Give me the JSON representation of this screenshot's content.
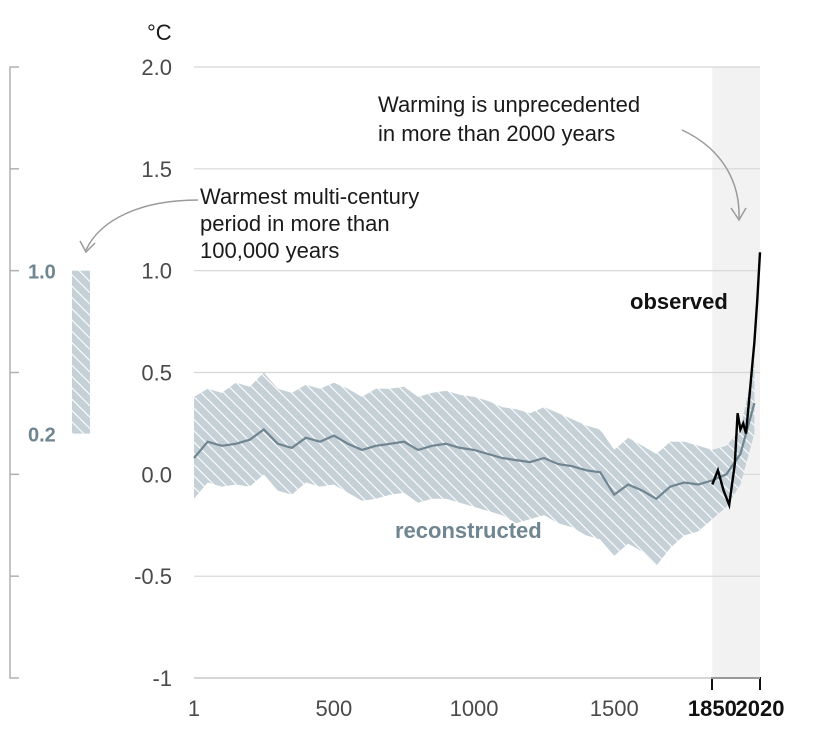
{
  "chart_data": {
    "type": "line",
    "unit_label": "°C",
    "ylim": [
      -1,
      2
    ],
    "y_ticks": [
      "2.0",
      "1.5",
      "1.0",
      "0.5",
      "0.0",
      "-0.5",
      "-1"
    ],
    "y_tick_values": [
      2.0,
      1.5,
      1.0,
      0.5,
      0.0,
      -0.5,
      -1.0
    ],
    "x_range": [
      1,
      2020
    ],
    "x_ticks": [
      {
        "label": "1",
        "value": 1,
        "bold": false
      },
      {
        "label": "500",
        "value": 500,
        "bold": false
      },
      {
        "label": "1000",
        "value": 1000,
        "bold": false
      },
      {
        "label": "1500",
        "value": 1500,
        "bold": false
      },
      {
        "label": "1850",
        "value": 1850,
        "bold": true
      },
      {
        "label": "2020",
        "value": 2020,
        "bold": true
      }
    ],
    "grid": true,
    "shaded_period": [
      1850,
      2020
    ],
    "series": [
      {
        "name": "reconstructed",
        "color": "#6f8591",
        "band_color": "#c5d0d7",
        "x": [
          1,
          50,
          100,
          150,
          200,
          250,
          300,
          350,
          400,
          450,
          500,
          550,
          600,
          650,
          700,
          750,
          800,
          850,
          900,
          950,
          1000,
          1050,
          1100,
          1150,
          1200,
          1250,
          1300,
          1350,
          1400,
          1450,
          1500,
          1550,
          1600,
          1650,
          1700,
          1750,
          1800,
          1850,
          1900,
          1950,
          2000
        ],
        "y": [
          0.08,
          0.16,
          0.14,
          0.15,
          0.17,
          0.22,
          0.15,
          0.13,
          0.18,
          0.16,
          0.19,
          0.15,
          0.12,
          0.14,
          0.15,
          0.16,
          0.12,
          0.14,
          0.15,
          0.13,
          0.12,
          0.1,
          0.08,
          0.07,
          0.06,
          0.08,
          0.05,
          0.04,
          0.02,
          0.01,
          -0.1,
          -0.05,
          -0.08,
          -0.12,
          -0.06,
          -0.04,
          -0.05,
          -0.03,
          0.0,
          0.1,
          0.35
        ],
        "lower": [
          -0.12,
          -0.04,
          -0.06,
          -0.05,
          -0.06,
          0.0,
          -0.08,
          -0.1,
          -0.04,
          -0.06,
          -0.05,
          -0.09,
          -0.13,
          -0.12,
          -0.1,
          -0.09,
          -0.14,
          -0.12,
          -0.12,
          -0.14,
          -0.16,
          -0.18,
          -0.2,
          -0.24,
          -0.22,
          -0.2,
          -0.24,
          -0.26,
          -0.3,
          -0.32,
          -0.4,
          -0.34,
          -0.38,
          -0.45,
          -0.36,
          -0.3,
          -0.28,
          -0.22,
          -0.16,
          -0.05,
          0.2
        ],
        "upper": [
          0.38,
          0.42,
          0.4,
          0.45,
          0.43,
          0.5,
          0.42,
          0.4,
          0.44,
          0.42,
          0.45,
          0.42,
          0.38,
          0.42,
          0.42,
          0.43,
          0.38,
          0.4,
          0.41,
          0.39,
          0.38,
          0.36,
          0.33,
          0.32,
          0.3,
          0.33,
          0.3,
          0.27,
          0.24,
          0.22,
          0.12,
          0.18,
          0.14,
          0.1,
          0.16,
          0.16,
          0.14,
          0.12,
          0.14,
          0.22,
          0.55
        ]
      },
      {
        "name": "observed",
        "color": "#000000",
        "x": [
          1850,
          1870,
          1890,
          1910,
          1920,
          1930,
          1940,
          1950,
          1960,
          1970,
          1980,
          1990,
          2000,
          2010,
          2020
        ],
        "y": [
          -0.05,
          0.02,
          -0.08,
          -0.15,
          -0.05,
          0.05,
          0.3,
          0.22,
          0.25,
          0.2,
          0.35,
          0.5,
          0.65,
          0.85,
          1.09
        ]
      }
    ],
    "side_bar": {
      "low": 0.2,
      "high": 1.0,
      "low_label": "0.2",
      "high_label": "1.0",
      "color": "#c5d0d7"
    },
    "annotations": {
      "multi_century": [
        "Warmest multi-century",
        "period in more than",
        "100,000 years"
      ],
      "unprecedented": [
        "Warming is unprecedented",
        "in more than 2000 years"
      ]
    },
    "series_labels": {
      "reconstructed": "reconstructed",
      "observed": "observed"
    }
  }
}
